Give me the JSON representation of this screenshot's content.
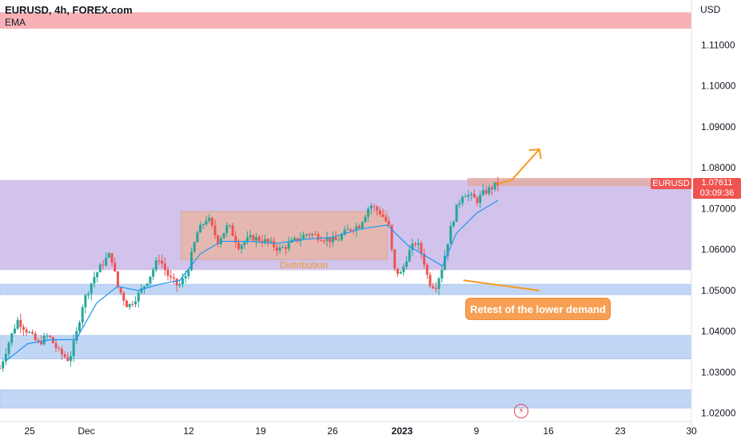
{
  "header": {
    "title": "EURUSD, 4h, FOREX.com",
    "indicator": "EMA",
    "currency": "USD"
  },
  "annotations": {
    "distribution": "Distribution",
    "callout": "Retest of the lower demand"
  },
  "price_marker": {
    "symbol": "EURUSD",
    "price": "1.07611",
    "countdown": "03:09:36"
  },
  "colors": {
    "up": "#26a69a",
    "down": "#ef5350",
    "ema": "#2196f3",
    "supply_zone": "#f7a8ad",
    "range_zone": "#c9b8e8",
    "demand_zone": "#bbd2f5",
    "distribution_box": "#e8b7a6",
    "annotation": "#f59a23"
  },
  "icons": {
    "replay": "lightning-replay-icon"
  },
  "chart_data": {
    "type": "candlestick",
    "title": "EURUSD, 4h, FOREX.com",
    "indicator": "EMA",
    "ylim": [
      1.018,
      1.121
    ],
    "y_ticks": [
      "1.11000",
      "1.10000",
      "1.09000",
      "1.08000",
      "1.07000",
      "1.06000",
      "1.05000",
      "1.04000",
      "1.03000",
      "1.02000"
    ],
    "x_ticks": [
      "25",
      "Dec",
      "12",
      "19",
      "26",
      "2023",
      "9",
      "16",
      "23",
      "30"
    ],
    "grid": false,
    "last_price": 1.07611,
    "zones": [
      {
        "kind": "supply",
        "from": 1.114,
        "to": 1.118
      },
      {
        "kind": "range",
        "from": 1.055,
        "to": 1.077
      },
      {
        "kind": "demand",
        "from": 1.049,
        "to": 1.0515
      },
      {
        "kind": "demand",
        "from": 1.0333,
        "to": 1.039
      },
      {
        "kind": "demand",
        "from": 1.0213,
        "to": 1.0257
      }
    ],
    "distribution_box": {
      "x_from": 0.262,
      "x_to": 0.56,
      "from": 1.0576,
      "to": 1.0693
    },
    "price_path": [
      [
        0.0,
        1.031
      ],
      [
        0.012,
        1.037
      ],
      [
        0.025,
        1.0428
      ],
      [
        0.04,
        1.04
      ],
      [
        0.055,
        1.037
      ],
      [
        0.07,
        1.039
      ],
      [
        0.085,
        1.035
      ],
      [
        0.1,
        1.033
      ],
      [
        0.11,
        1.039
      ],
      [
        0.12,
        1.047
      ],
      [
        0.135,
        1.053
      ],
      [
        0.15,
        1.057
      ],
      [
        0.16,
        1.059
      ],
      [
        0.17,
        1.051
      ],
      [
        0.185,
        1.046
      ],
      [
        0.2,
        1.049
      ],
      [
        0.215,
        1.053
      ],
      [
        0.23,
        1.058
      ],
      [
        0.245,
        1.053
      ],
      [
        0.258,
        1.051
      ],
      [
        0.27,
        1.054
      ],
      [
        0.285,
        1.064
      ],
      [
        0.3,
        1.068
      ],
      [
        0.315,
        1.062
      ],
      [
        0.33,
        1.066
      ],
      [
        0.345,
        1.061
      ],
      [
        0.365,
        1.063
      ],
      [
        0.385,
        1.062
      ],
      [
        0.405,
        1.06
      ],
      [
        0.425,
        1.062
      ],
      [
        0.445,
        1.064
      ],
      [
        0.465,
        1.063
      ],
      [
        0.485,
        1.062
      ],
      [
        0.505,
        1.065
      ],
      [
        0.52,
        1.066
      ],
      [
        0.535,
        1.071
      ],
      [
        0.55,
        1.069
      ],
      [
        0.562,
        1.066
      ],
      [
        0.57,
        1.055
      ],
      [
        0.58,
        1.054
      ],
      [
        0.59,
        1.059
      ],
      [
        0.602,
        1.062
      ],
      [
        0.612,
        1.058
      ],
      [
        0.62,
        1.052
      ],
      [
        0.63,
        1.051
      ],
      [
        0.64,
        1.056
      ],
      [
        0.65,
        1.064
      ],
      [
        0.66,
        1.07
      ],
      [
        0.67,
        1.074
      ],
      [
        0.68,
        1.073
      ],
      [
        0.69,
        1.072
      ],
      [
        0.7,
        1.074
      ],
      [
        0.71,
        1.075
      ],
      [
        0.72,
        1.0761
      ]
    ],
    "ema_path": [
      [
        0.01,
        1.033
      ],
      [
        0.04,
        1.037
      ],
      [
        0.075,
        1.038
      ],
      [
        0.11,
        1.038
      ],
      [
        0.14,
        1.047
      ],
      [
        0.17,
        1.051
      ],
      [
        0.2,
        1.05
      ],
      [
        0.23,
        1.0515
      ],
      [
        0.26,
        1.0525
      ],
      [
        0.29,
        1.059
      ],
      [
        0.32,
        1.062
      ],
      [
        0.36,
        1.062
      ],
      [
        0.4,
        1.0615
      ],
      [
        0.44,
        1.0625
      ],
      [
        0.48,
        1.063
      ],
      [
        0.52,
        1.065
      ],
      [
        0.56,
        1.066
      ],
      [
        0.59,
        1.061
      ],
      [
        0.62,
        1.058
      ],
      [
        0.64,
        1.056
      ],
      [
        0.66,
        1.064
      ],
      [
        0.69,
        1.069
      ],
      [
        0.72,
        1.072
      ]
    ],
    "projection": [
      [
        0.72,
        1.0761
      ],
      [
        0.74,
        1.077
      ],
      [
        0.78,
        1.0845
      ]
    ],
    "retest_arrow": [
      [
        0.78,
        1.05
      ],
      [
        0.67,
        1.0525
      ]
    ]
  }
}
